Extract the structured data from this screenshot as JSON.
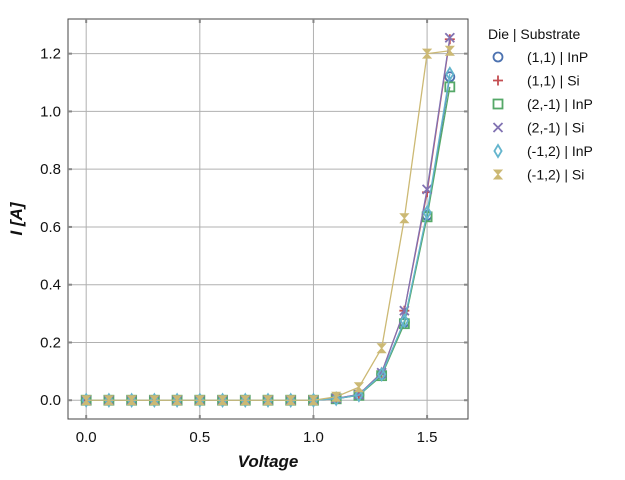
{
  "chart_data": {
    "type": "line",
    "title": "",
    "xlabel": "Voltage",
    "ylabel": "I [A]",
    "xlim": [
      -0.08,
      1.68
    ],
    "ylim": [
      -0.065,
      1.32
    ],
    "xticks": [
      0.0,
      0.5,
      1.0,
      1.5
    ],
    "xtick_labels": [
      "0.0",
      "0.5",
      "1.0",
      "1.5"
    ],
    "yticks": [
      0.0,
      0.2,
      0.4,
      0.6,
      0.8,
      1.0,
      1.2
    ],
    "ytick_labels": [
      "0.0",
      "0.2",
      "0.4",
      "0.6",
      "0.8",
      "1.0",
      "1.2"
    ],
    "grid": true,
    "legend": {
      "title": "Die | Substrate",
      "placement": "outside-upper-right"
    },
    "x": [
      0.0,
      0.1,
      0.2,
      0.3,
      0.4,
      0.5,
      0.6,
      0.7,
      0.8,
      0.9,
      1.0,
      1.1,
      1.2,
      1.3,
      1.4,
      1.5,
      1.6
    ],
    "series": [
      {
        "name": "(1,1) | InP",
        "marker": "circle",
        "color": "#4c72b0",
        "values": [
          0,
          0,
          0,
          0,
          0,
          0,
          0,
          0,
          0,
          0,
          0,
          0.005,
          0.018,
          0.09,
          0.27,
          0.64,
          1.12
        ]
      },
      {
        "name": "(1,1) | Si",
        "marker": "plus",
        "color": "#c44e52",
        "values": [
          0,
          0,
          0,
          0,
          0,
          0,
          0,
          0,
          0,
          0,
          0,
          0.006,
          0.02,
          0.095,
          0.31,
          0.72,
          1.25
        ]
      },
      {
        "name": "(2,-1) | InP",
        "marker": "square",
        "color": "#55a868",
        "values": [
          0,
          0,
          0,
          0,
          0,
          0,
          0,
          0,
          0,
          0,
          0,
          0.005,
          0.017,
          0.085,
          0.265,
          0.635,
          1.085
        ]
      },
      {
        "name": "(2,-1) | Si",
        "marker": "x",
        "color": "#8172b2",
        "values": [
          0,
          0,
          0,
          0,
          0,
          0,
          0,
          0,
          0,
          0,
          0,
          0.006,
          0.02,
          0.095,
          0.31,
          0.73,
          1.255
        ]
      },
      {
        "name": "(-1,2) | InP",
        "marker": "diamond",
        "color": "#64b5cd",
        "values": [
          0,
          0,
          0,
          0,
          0,
          0,
          0,
          0,
          0,
          0,
          0,
          0.005,
          0.018,
          0.09,
          0.275,
          0.65,
          1.13
        ]
      },
      {
        "name": "(-1,2) | Si",
        "marker": "hourglass",
        "color": "#ccb974",
        "values": [
          0,
          0,
          0,
          0,
          0,
          0,
          0,
          0,
          0,
          0,
          0,
          0.012,
          0.045,
          0.18,
          0.63,
          1.2,
          1.21
        ]
      }
    ]
  }
}
